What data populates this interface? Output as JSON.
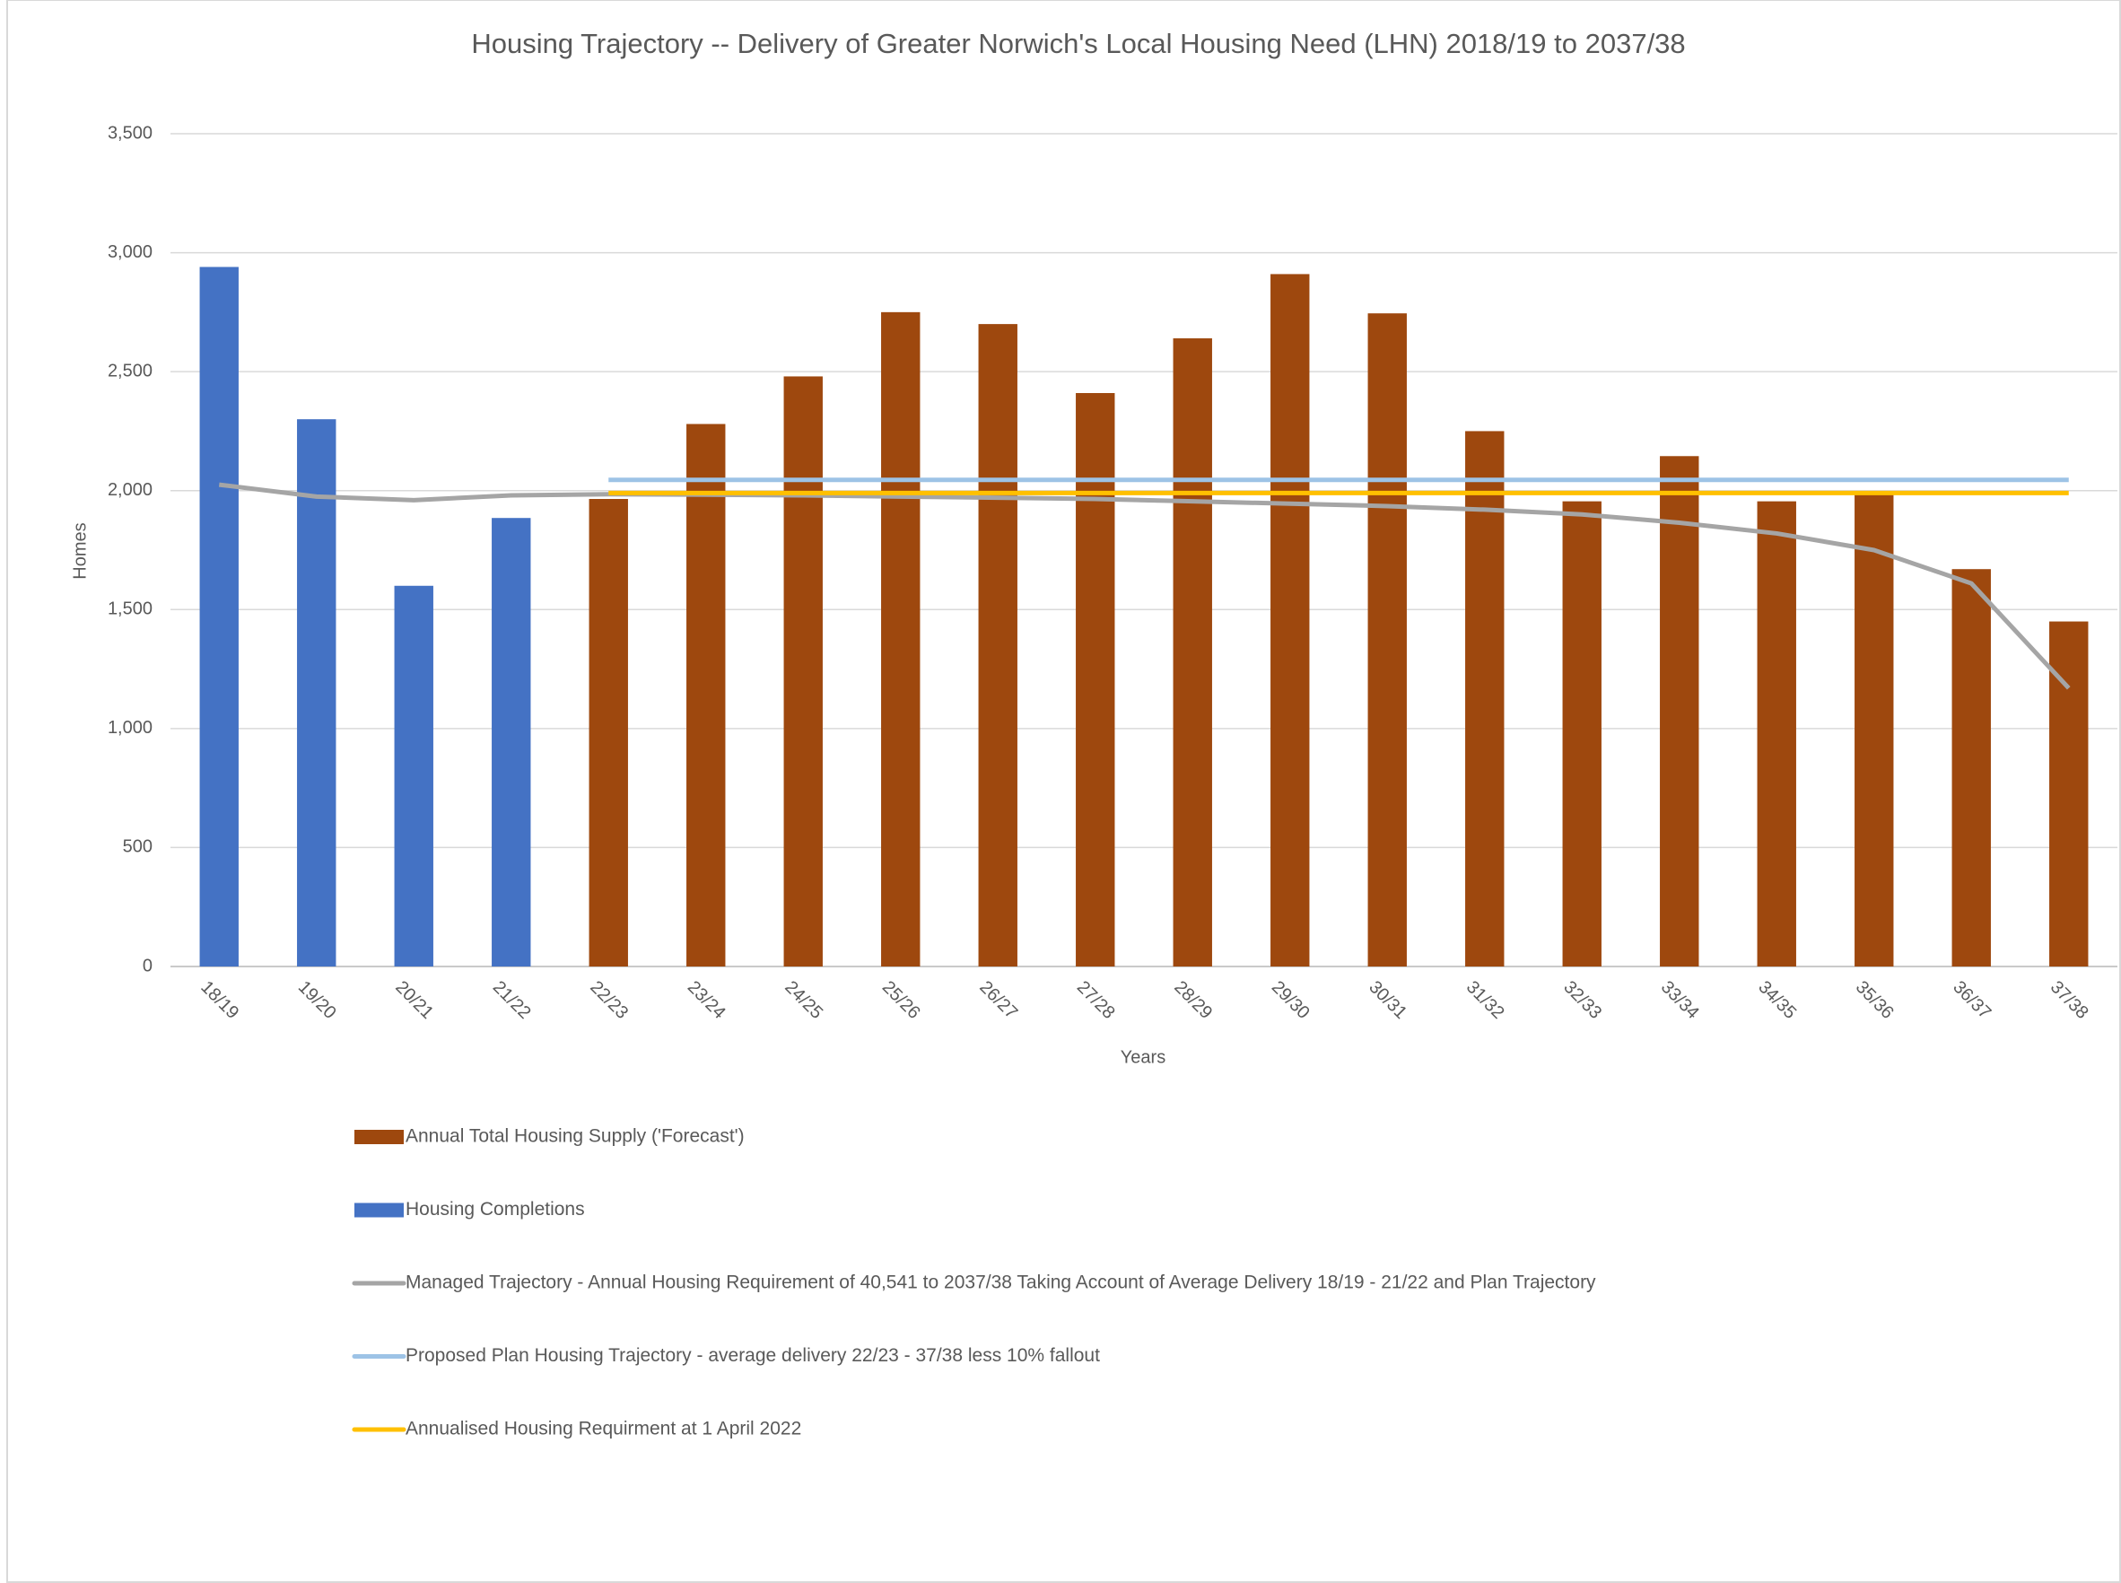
{
  "chart_data": {
    "type": "combo",
    "title": "Housing Trajectory -- Delivery of Greater Norwich's Local Housing Need (LHN) 2018/19 to 2037/38",
    "x_label": "Years",
    "y_label": "Homes",
    "categories": [
      "18/19",
      "19/20",
      "20/21",
      "21/22",
      "22/23",
      "23/24",
      "24/25",
      "25/26",
      "26/27",
      "27/28",
      "28/29",
      "29/30",
      "30/31",
      "31/32",
      "32/33",
      "33/34",
      "34/35",
      "35/36",
      "36/37",
      "37/38"
    ],
    "ylim": [
      0,
      3500
    ],
    "yticks": [
      0,
      500,
      {
        "value": 1000,
        "label": "1,000"
      },
      {
        "value": 1500,
        "label": "1,500"
      },
      {
        "value": 2000,
        "label": "2,000"
      },
      {
        "value": 2500,
        "label": "2,500"
      },
      {
        "value": 3000,
        "label": "3,000"
      },
      {
        "value": 3500,
        "label": "3,500"
      }
    ],
    "grid": true,
    "legend": "bottom",
    "series": [
      {
        "name": "Annual Total Housing Supply ('Forecast')",
        "type": "bar",
        "color": "#9e480e",
        "values": [
          null,
          null,
          null,
          null,
          1965,
          2280,
          2480,
          2750,
          2700,
          2410,
          2640,
          2910,
          2745,
          2250,
          1955,
          2145,
          1955,
          1985,
          1670,
          1450
        ]
      },
      {
        "name": "Housing Completions",
        "type": "bar",
        "color": "#4472c4",
        "values": [
          2940,
          2300,
          1600,
          1885,
          null,
          null,
          null,
          null,
          null,
          null,
          null,
          null,
          null,
          null,
          null,
          null,
          null,
          null,
          null,
          null
        ]
      },
      {
        "name": "Managed Trajectory - Annual Housing Requirement of 40,541 to 2037/38 Taking Account of Average Delivery 18/19 - 21/22 and Plan Trajectory",
        "type": "line",
        "color": "#a5a5a5",
        "values": [
          2025,
          1975,
          1960,
          1980,
          1985,
          1983,
          1980,
          1975,
          1970,
          1965,
          1955,
          1945,
          1935,
          1920,
          1900,
          1865,
          1820,
          1750,
          1610,
          1170
        ]
      },
      {
        "name": "Proposed Plan Housing Trajectory - average delivery 22/23 - 37/38 less 10% fallout",
        "type": "line",
        "color": "#9dc3e6",
        "values": [
          null,
          null,
          null,
          null,
          2045,
          2045,
          2045,
          2045,
          2045,
          2045,
          2045,
          2045,
          2045,
          2045,
          2045,
          2045,
          2045,
          2045,
          2045,
          2045
        ]
      },
      {
        "name": "Annualised Housing Requirment at 1 April 2022",
        "type": "line",
        "color": "#ffc000",
        "values": [
          null,
          null,
          null,
          null,
          1990,
          1990,
          1990,
          1990,
          1990,
          1990,
          1990,
          1990,
          1990,
          1990,
          1990,
          1990,
          1990,
          1990,
          1990,
          1990
        ]
      }
    ]
  }
}
